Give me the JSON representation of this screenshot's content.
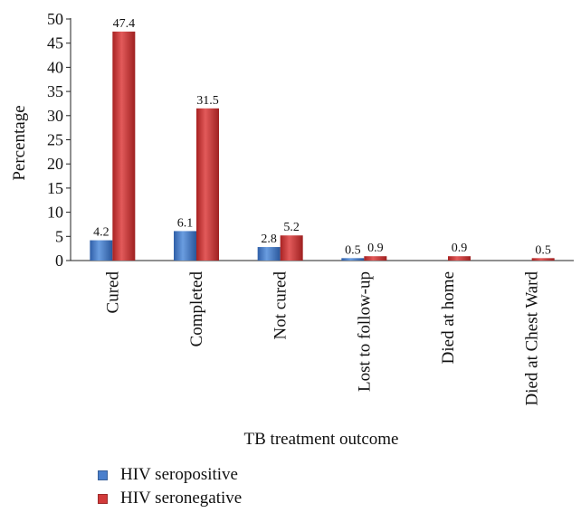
{
  "chart_data": {
    "type": "bar",
    "title": "",
    "xlabel": "TB treatment outcome",
    "ylabel": "Percentage",
    "ylim": [
      0,
      50
    ],
    "yticks": [
      "0",
      "5",
      "10",
      "15",
      "20",
      "25",
      "30",
      "35",
      "40",
      "45",
      "50"
    ],
    "categories": [
      "Cured",
      "Completed",
      "Not cured",
      "Lost to follow-up",
      "Died at home",
      "Died at Chest Ward"
    ],
    "series": [
      {
        "name": "HIV seropositive",
        "color": "#4a7fcc",
        "values": [
          4.2,
          6.1,
          2.8,
          0.5,
          null,
          null
        ],
        "labels": [
          "4.2",
          "6.1",
          "2.8",
          "0.5",
          "",
          ""
        ]
      },
      {
        "name": "HIV seronegative",
        "color": "#d23a3a",
        "values": [
          47.4,
          31.5,
          5.2,
          0.9,
          0.9,
          0.5
        ],
        "labels": [
          "47.4",
          "31.5",
          "5.2",
          "0.9",
          "0.9",
          "0.5"
        ]
      }
    ],
    "grid": false,
    "legend_position": "bottom-left"
  }
}
